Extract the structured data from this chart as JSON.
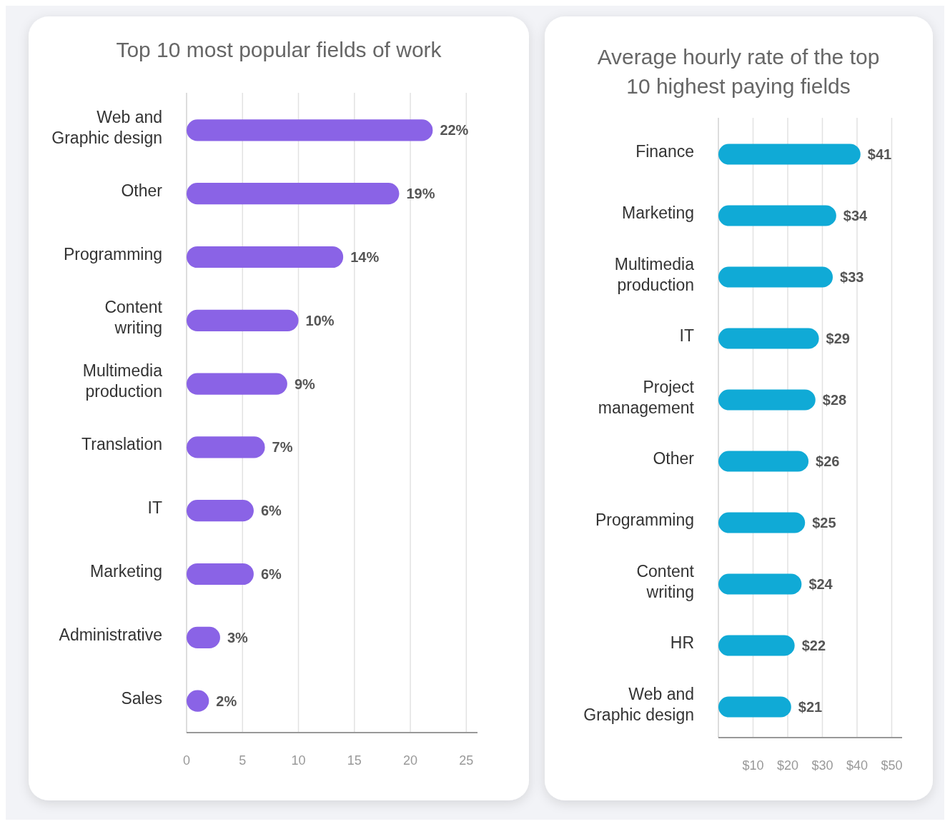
{
  "chart_data": [
    {
      "type": "bar",
      "orientation": "horizontal",
      "title": "Top 10 most popular fields of work",
      "categories": [
        "Web and Graphic design",
        "Other",
        "Programming",
        "Content writing",
        "Multimedia production",
        "Translation",
        "IT",
        "Marketing",
        "Administrative",
        "Sales"
      ],
      "values": [
        22,
        19,
        14,
        10,
        9,
        7,
        6,
        6,
        3,
        2
      ],
      "value_labels": [
        "22%",
        "19%",
        "14%",
        "10%",
        "9%",
        "7%",
        "6%",
        "6%",
        "3%",
        "2%"
      ],
      "color": "#8a63e6",
      "xlim": [
        0,
        26
      ],
      "xticks": [
        0,
        5,
        10,
        15,
        20,
        25
      ],
      "grid": "x"
    },
    {
      "type": "bar",
      "orientation": "horizontal",
      "title": "Average hourly rate of the top 10 highest paying fields",
      "categories": [
        "Finance",
        "Marketing",
        "Multimedia production",
        "IT",
        "Project management",
        "Other",
        "Programming",
        "Content writing",
        "HR",
        "Web and Graphic design"
      ],
      "values": [
        41,
        34,
        33,
        29,
        28,
        26,
        25,
        24,
        22,
        21
      ],
      "value_labels": [
        "$41",
        "$34",
        "$33",
        "$29",
        "$28",
        "$26",
        "$25",
        "$24",
        "$22",
        "$21"
      ],
      "color": "#10aad6",
      "xlim": [
        0,
        53
      ],
      "xticks": [
        {
          "value": 10,
          "label": "$10"
        },
        {
          "value": 20,
          "label": "$20"
        },
        {
          "value": 30,
          "label": "$30"
        },
        {
          "value": 40,
          "label": "$40"
        },
        {
          "value": 50,
          "label": "$50"
        }
      ],
      "grid": "x"
    }
  ]
}
